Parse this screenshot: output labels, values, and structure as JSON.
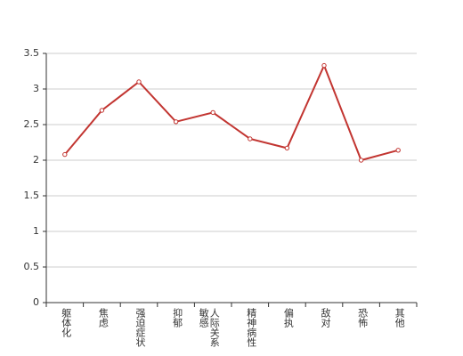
{
  "chart_data": {
    "type": "line",
    "categories": [
      "躯体化",
      "焦虑",
      "强迫症状",
      "抑郁",
      "人际关系敏感",
      "精神病性",
      "偏执",
      "敌对",
      "恐怖",
      "其他"
    ],
    "values": [
      2.08,
      2.7,
      3.1,
      2.54,
      2.67,
      2.3,
      2.17,
      3.33,
      2.0,
      2.14
    ],
    "color": "#c23531",
    "ylim": [
      0,
      3.5
    ],
    "yticks": [
      0,
      0.5,
      1,
      1.5,
      2,
      2.5,
      3,
      3.5
    ],
    "grid": true
  }
}
